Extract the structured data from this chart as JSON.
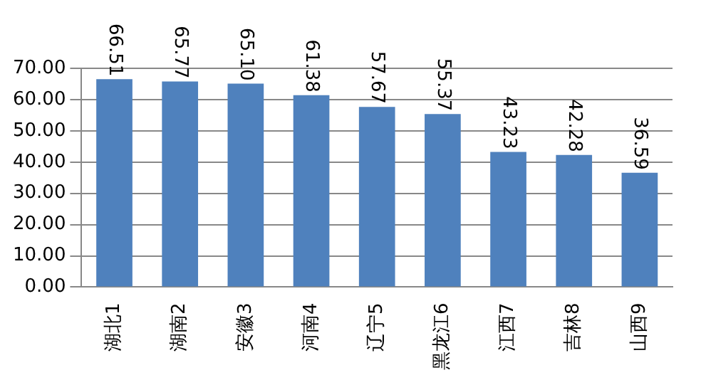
{
  "chart_data": {
    "type": "bar",
    "categories": [
      "湖北1",
      "湖南2",
      "安徽3",
      "河南4",
      "辽宁5",
      "黑龙江6",
      "江西7",
      "吉林8",
      "山西9"
    ],
    "values": [
      66.51,
      65.77,
      65.1,
      61.38,
      57.67,
      55.37,
      43.23,
      42.28,
      36.59
    ],
    "value_labels": [
      "66.51",
      "65.77",
      "65.10",
      "61.38",
      "57.67",
      "55.37",
      "43.23",
      "42.28",
      "36.59"
    ],
    "color": "#4f81bd",
    "ylim": [
      0,
      70
    ],
    "yticks": [
      {
        "value": 0,
        "label": "0.00"
      },
      {
        "value": 10,
        "label": "10.00"
      },
      {
        "value": 20,
        "label": "20.00"
      },
      {
        "value": 30,
        "label": "30.00"
      },
      {
        "value": 40,
        "label": "40.00"
      },
      {
        "value": 50,
        "label": "50.00"
      },
      {
        "value": 60,
        "label": "60.00"
      },
      {
        "value": 70,
        "label": "70.00"
      }
    ],
    "grid": "y",
    "legend": false
  }
}
